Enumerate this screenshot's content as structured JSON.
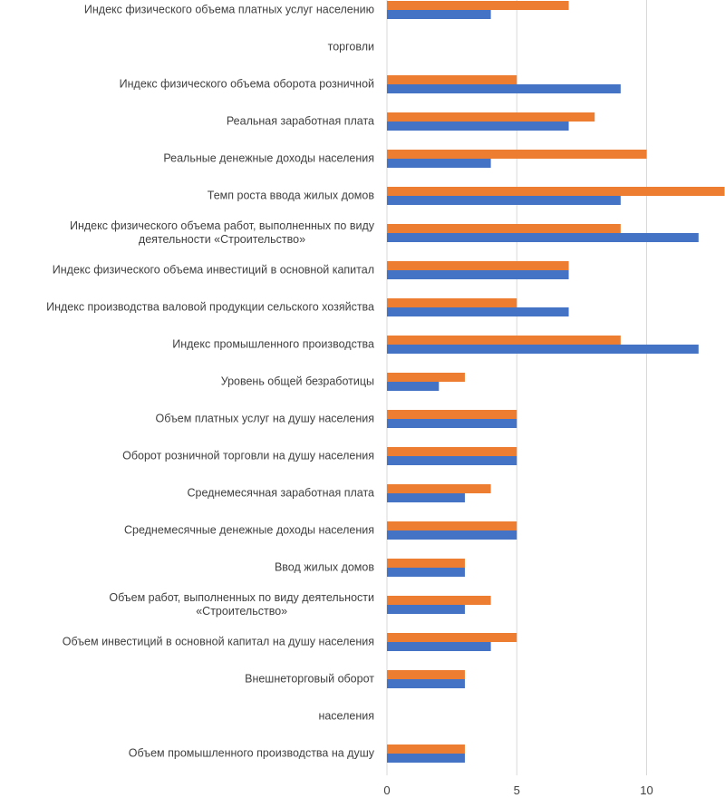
{
  "chart_data": {
    "type": "bar",
    "orientation": "horizontal",
    "categories": [
      "Индекс физического объема платных услуг населению",
      "торговли",
      "Индекс физического объема оборота розничной",
      "Реальная заработная плата",
      "Реальные денежные доходы населения",
      "Темп роста ввода жилых домов",
      "Индекс физического объема работ, выполненных по виду деятельности «Строительство»",
      "Индекс физического объема инвестиций в основной капитал",
      "Индекс производства валовой продукции сельского хозяйства",
      "Индекс промышленного производства",
      "Уровень общей безработицы",
      "Объем платных услуг на душу населения",
      "Оборот розничной торговли на душу населения",
      "Среднемесячная заработная плата",
      "Среднемесячные денежные доходы населения",
      "Ввод жилых домов",
      "Объем работ, выполненных по виду деятельности «Строительство»",
      "Объем инвестиций в основной капитал на душу населения",
      "Внешнеторговый оборот",
      "населения",
      "Объем промышленного производства на душу"
    ],
    "series": [
      {
        "color": "#ED7D31",
        "values": [
          7,
          null,
          5,
          8,
          10,
          13,
          9,
          7,
          5,
          9,
          3,
          5,
          5,
          4,
          5,
          3,
          4,
          5,
          3,
          null,
          3
        ]
      },
      {
        "color": "#4472C4",
        "values": [
          4,
          null,
          9,
          7,
          4,
          9,
          12,
          7,
          7,
          12,
          2,
          5,
          5,
          3,
          5,
          3,
          3,
          4,
          3,
          null,
          3
        ]
      }
    ],
    "xticks": [
      "0",
      "5",
      "10"
    ],
    "xlim": [
      0,
      13
    ],
    "grid": true,
    "legend": "none",
    "title": "",
    "xlabel": "",
    "ylabel": ""
  }
}
